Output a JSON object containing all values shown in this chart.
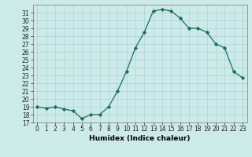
{
  "x": [
    0,
    1,
    2,
    3,
    4,
    5,
    6,
    7,
    8,
    9,
    10,
    11,
    12,
    13,
    14,
    15,
    16,
    17,
    18,
    19,
    20,
    21,
    22,
    23
  ],
  "y": [
    19,
    18.8,
    19,
    18.7,
    18.5,
    17.5,
    18,
    18,
    19,
    21,
    23.5,
    26.5,
    28.5,
    31.2,
    31.4,
    31.2,
    30.3,
    29,
    29,
    28.5,
    27,
    26.5,
    23.5,
    22.7
  ],
  "xlabel": "Humidex (Indice chaleur)",
  "ylim": [
    17,
    32
  ],
  "xlim": [
    -0.5,
    23.5
  ],
  "yticks": [
    17,
    18,
    19,
    20,
    21,
    22,
    23,
    24,
    25,
    26,
    27,
    28,
    29,
    30,
    31
  ],
  "xticks": [
    0,
    1,
    2,
    3,
    4,
    5,
    6,
    7,
    8,
    9,
    10,
    11,
    12,
    13,
    14,
    15,
    16,
    17,
    18,
    19,
    20,
    21,
    22,
    23
  ],
  "line_color": "#1e6b5e",
  "bg_color": "#cceae8",
  "grid_color": "#aad4d0",
  "tick_fontsize": 5.5,
  "xlabel_fontsize": 6.5
}
